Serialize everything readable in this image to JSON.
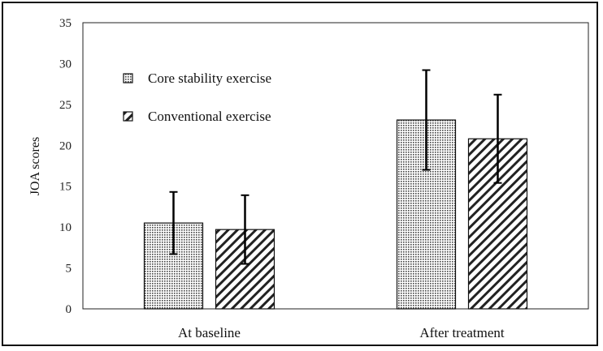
{
  "chart_data": {
    "type": "bar",
    "title": "",
    "xlabel": "",
    "ylabel": "JOA scores",
    "ylim": [
      0,
      35
    ],
    "yticks": [
      0,
      5,
      10,
      15,
      20,
      25,
      30,
      35
    ],
    "categories": [
      "At baseline",
      "After treatment"
    ],
    "series": [
      {
        "name": "Core stability exercise",
        "pattern": "dots",
        "values": [
          10.5,
          23.1
        ],
        "error": [
          3.8,
          6.1
        ]
      },
      {
        "name": "Conventional exercise",
        "pattern": "diagonal-hatch",
        "values": [
          9.7,
          20.8
        ],
        "error": [
          4.2,
          5.4
        ]
      }
    ],
    "grid": false,
    "legend_position": "top-left",
    "colors": {
      "bar_fill": "#ffffff",
      "pattern": "#333333",
      "frame": "#111111"
    }
  }
}
